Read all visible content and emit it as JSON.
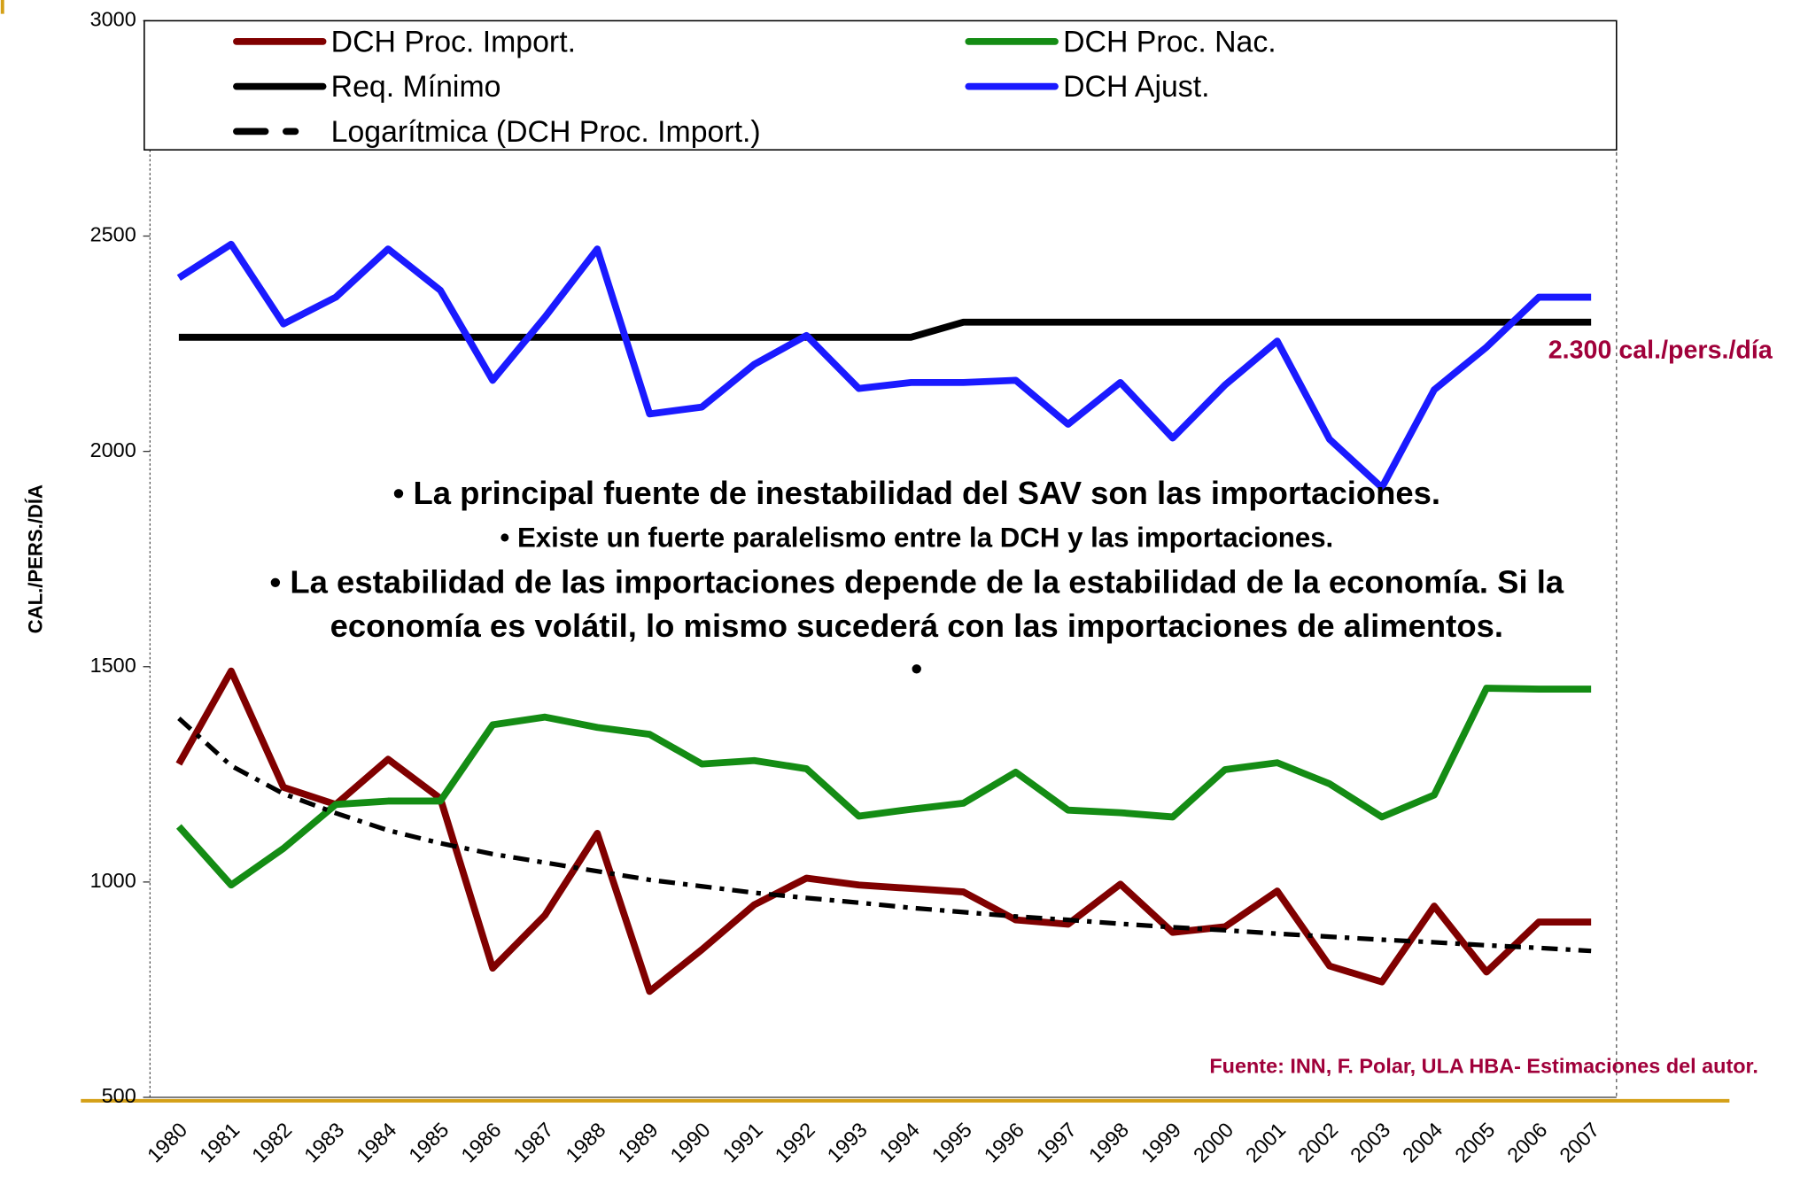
{
  "chart_data": {
    "type": "line",
    "y_label": "CAL./PERS./DÍA",
    "categories": [
      "1980",
      "1981",
      "1982",
      "1983",
      "1984",
      "1985",
      "1986",
      "1987",
      "1988",
      "1989",
      "1990",
      "1991",
      "1992",
      "1993",
      "1994",
      "1995",
      "1996",
      "1997",
      "1998",
      "1999",
      "2000",
      "2001",
      "2002",
      "2003",
      "2004",
      "2005",
      "2006",
      "2007"
    ],
    "ylim": [
      500,
      3000
    ],
    "yticks": [
      500,
      1000,
      1500,
      2000,
      2500,
      3000
    ],
    "series": [
      {
        "name": "DCH Proc. Import.",
        "color": "#800000",
        "values": [
          1274,
          1490,
          1220,
          1180,
          1285,
          1194,
          800,
          923,
          1113,
          746,
          843,
          947,
          1009,
          993,
          985,
          977,
          912,
          902,
          995,
          883,
          896,
          979,
          805,
          768,
          944,
          791,
          907,
          907
        ]
      },
      {
        "name": "DCH Proc. Nac.",
        "color": "#148c14",
        "values": [
          1129,
          993,
          1078,
          1180,
          1188,
          1188,
          1365,
          1383,
          1359,
          1343,
          1274,
          1282,
          1263,
          1153,
          1169,
          1183,
          1255,
          1167,
          1161,
          1151,
          1261,
          1277,
          1228,
          1151,
          1202,
          1450,
          1448,
          1448
        ]
      },
      {
        "name": "Req. Mínimo",
        "color": "#000000",
        "values": [
          2265,
          2265,
          2265,
          2265,
          2265,
          2265,
          2265,
          2265,
          2265,
          2265,
          2265,
          2265,
          2265,
          2265,
          2265,
          2300,
          2300,
          2300,
          2300,
          2300,
          2300,
          2300,
          2300,
          2300,
          2300,
          2300,
          2300,
          2300
        ]
      },
      {
        "name": "DCH Ajust.",
        "color": "#1a1aff",
        "values": [
          2403,
          2481,
          2296,
          2358,
          2470,
          2374,
          2165,
          2312,
          2470,
          2087,
          2103,
          2202,
          2269,
          2146,
          2160,
          2160,
          2165,
          2063,
          2160,
          2031,
          2154,
          2256,
          2028,
          1916,
          2143,
          2242,
          2358,
          2358
        ]
      },
      {
        "name": "Logarítmica (DCH Proc. Import.)",
        "color": "#000000",
        "line_style": "dashed",
        "values": [
          1380,
          1270,
          1205,
          1160,
          1120,
          1090,
          1065,
          1045,
          1025,
          1005,
          990,
          975,
          963,
          952,
          940,
          930,
          920,
          912,
          903,
          895,
          888,
          880,
          873,
          866,
          860,
          853,
          847,
          840
        ]
      }
    ],
    "annotations": [
      "2.300 cal./pers./día",
      "• La principal fuente de inestabilidad del SAV son las importaciones.",
      "• Existe un fuerte paralelismo entre la DCH y las importaciones.",
      "• La estabilidad de las importaciones depende de la estabilidad de la economía. Si la",
      "economía es volátil, lo mismo sucederá con las importaciones de alimentos.",
      "•",
      "Fuente: INN, F. Polar, ULA HBA- Estimaciones del autor."
    ]
  }
}
